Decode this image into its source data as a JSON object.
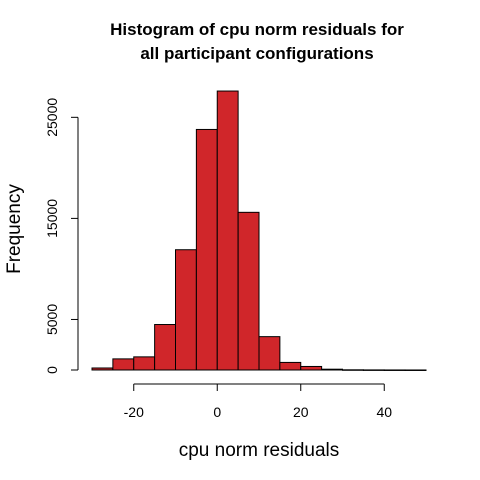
{
  "chart_data": {
    "type": "bar",
    "subtype": "histogram",
    "title_lines": [
      "Histogram of cpu norm residuals for",
      "all participant configurations"
    ],
    "xlabel": "cpu norm residuals",
    "ylabel": "Frequency",
    "xlim": [
      -30,
      50
    ],
    "ylim": [
      0,
      28000
    ],
    "x_ticks": [
      -20,
      0,
      20,
      40
    ],
    "y_ticks": [
      0,
      5000,
      15000,
      25000
    ],
    "bar_color": "#d0262a",
    "bins": [
      {
        "from": -30,
        "to": -25,
        "count": 200
      },
      {
        "from": -25,
        "to": -20,
        "count": 1100
      },
      {
        "from": -20,
        "to": -15,
        "count": 1300
      },
      {
        "from": -15,
        "to": -10,
        "count": 4500
      },
      {
        "from": -10,
        "to": -5,
        "count": 11900
      },
      {
        "from": -5,
        "to": 0,
        "count": 23800
      },
      {
        "from": 0,
        "to": 5,
        "count": 27600
      },
      {
        "from": 5,
        "to": 10,
        "count": 15600
      },
      {
        "from": 10,
        "to": 15,
        "count": 3300
      },
      {
        "from": 15,
        "to": 20,
        "count": 750
      },
      {
        "from": 20,
        "to": 25,
        "count": 350
      },
      {
        "from": 25,
        "to": 30,
        "count": 80
      },
      {
        "from": 30,
        "to": 35,
        "count": 20
      },
      {
        "from": 35,
        "to": 40,
        "count": 10
      },
      {
        "from": 40,
        "to": 45,
        "count": 5
      },
      {
        "from": 45,
        "to": 50,
        "count": 3
      }
    ]
  }
}
